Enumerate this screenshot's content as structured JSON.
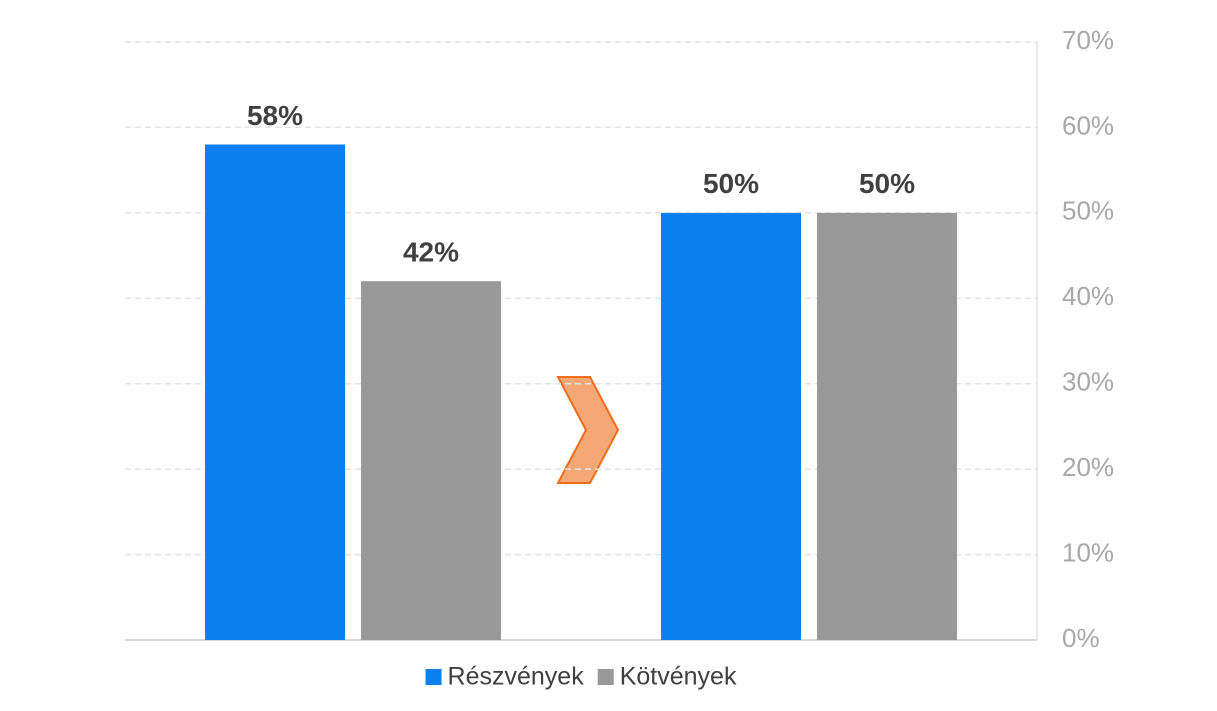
{
  "chart_data": {
    "type": "bar",
    "categories": [
      null,
      null
    ],
    "series": [
      {
        "name": "Részvények",
        "color": "#0a7ff0",
        "values": [
          58,
          50
        ],
        "value_labels": [
          "58%",
          "50%"
        ]
      },
      {
        "name": "Kötvények",
        "color": "#999999",
        "values": [
          42,
          50
        ],
        "value_labels": [
          "42%",
          "50%"
        ]
      }
    ],
    "ylim": [
      0,
      70
    ],
    "yticks": [
      {
        "value": 0,
        "label": "0%"
      },
      {
        "value": 10,
        "label": "10%"
      },
      {
        "value": 20,
        "label": "20%"
      },
      {
        "value": 30,
        "label": "30%"
      },
      {
        "value": 40,
        "label": "40%"
      },
      {
        "value": 50,
        "label": "50%"
      },
      {
        "value": 60,
        "label": "60%"
      },
      {
        "value": 70,
        "label": "70%"
      }
    ],
    "grid": true,
    "y_axis_side": "right",
    "legend": "bottom"
  }
}
